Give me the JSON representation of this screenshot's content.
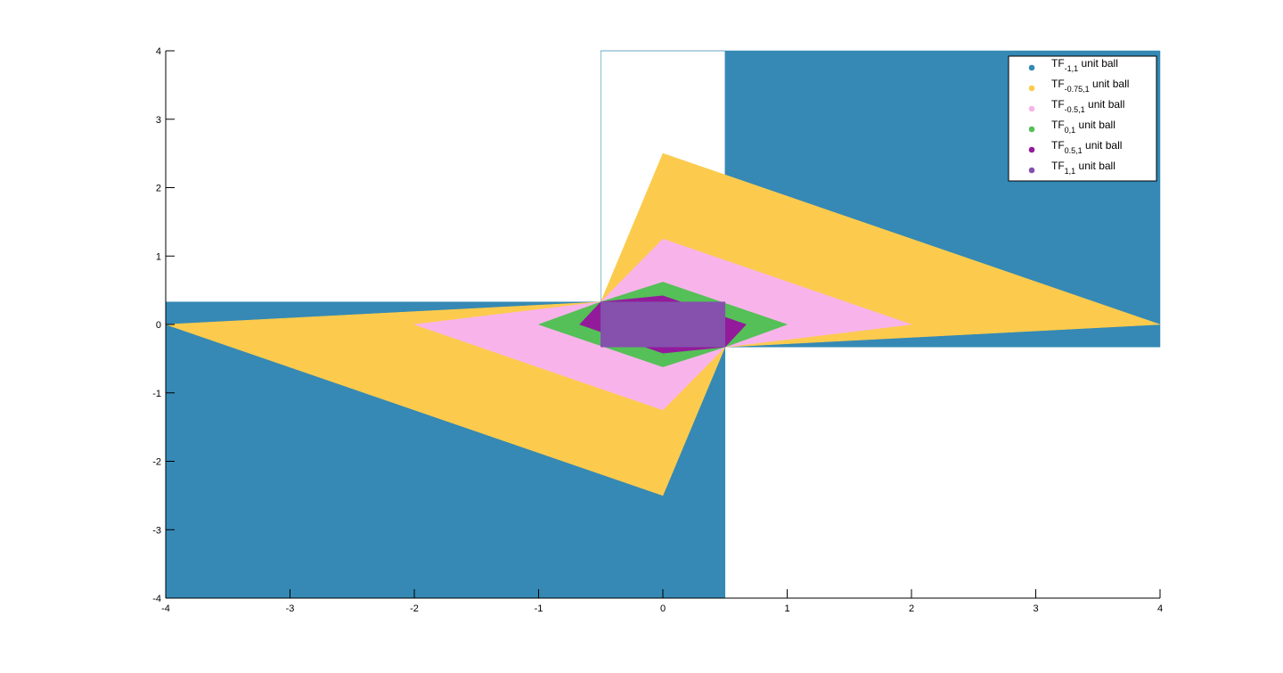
{
  "chart_data": {
    "type": "area",
    "title": "",
    "xlabel": "",
    "ylabel": "",
    "xlim": [
      -4,
      4
    ],
    "ylim": [
      -4,
      4
    ],
    "xticks": [
      -4,
      -3,
      -2,
      -1,
      0,
      1,
      2,
      3,
      4
    ],
    "yticks": [
      -4,
      -3,
      -2,
      -1,
      0,
      1,
      2,
      3,
      4
    ],
    "grid": false,
    "legend_position": "top-right",
    "series": [
      {
        "name_main": "TF",
        "name_sub": "-1,1",
        "name_suffix": " unit ball",
        "color": "#3589b4",
        "polygon": [
          [
            0.5,
            -0.33
          ],
          [
            0.5,
            4
          ],
          [
            -0.5,
            4
          ],
          [
            -0.5,
            0.33
          ],
          [
            -0.5,
            4
          ],
          [
            4,
            4
          ],
          [
            4,
            -0.33
          ],
          [
            0.5,
            -0.33
          ],
          [
            0.5,
            -4
          ],
          [
            -4,
            -4
          ],
          [
            -4,
            0.33
          ],
          [
            -0.5,
            0.33
          ]
        ]
      },
      {
        "name_main": "TF",
        "name_sub": "-0.75,1",
        "name_suffix": " unit ball",
        "color": "#fccb4e",
        "polygon": [
          [
            4,
            0
          ],
          [
            0,
            2.5
          ],
          [
            -0.5,
            0.33
          ],
          [
            -4,
            0
          ],
          [
            0,
            -2.5
          ],
          [
            0.5,
            -0.33
          ]
        ]
      },
      {
        "name_main": "TF",
        "name_sub": "-0.5,1",
        "name_suffix": " unit ball",
        "color": "#f8b4ea",
        "polygon": [
          [
            2,
            0
          ],
          [
            0,
            1.25
          ],
          [
            -0.5,
            0.33
          ],
          [
            -2,
            0
          ],
          [
            0,
            -1.25
          ],
          [
            0.5,
            -0.33
          ]
        ]
      },
      {
        "name_main": "TF",
        "name_sub": "0,1",
        "name_suffix": " unit ball",
        "color": "#54c057",
        "polygon": [
          [
            1,
            0
          ],
          [
            0,
            0.62
          ],
          [
            -0.5,
            0.33
          ],
          [
            -1,
            0
          ],
          [
            0,
            -0.62
          ],
          [
            0.5,
            -0.33
          ]
        ]
      },
      {
        "name_main": "TF",
        "name_sub": "0.5,1",
        "name_suffix": " unit ball",
        "color": "#931b9b",
        "polygon": [
          [
            0.67,
            0
          ],
          [
            0,
            0.42
          ],
          [
            -0.5,
            0.33
          ],
          [
            -0.67,
            0
          ],
          [
            0,
            -0.42
          ],
          [
            0.5,
            -0.33
          ]
        ]
      },
      {
        "name_main": "TF",
        "name_sub": "1,1",
        "name_suffix": " unit ball",
        "color": "#8551ad",
        "polygon": [
          [
            0.5,
            0
          ],
          [
            0.5,
            0.33
          ],
          [
            -0.5,
            0.33
          ],
          [
            -0.5,
            0
          ],
          [
            -0.5,
            -0.33
          ],
          [
            0.5,
            -0.33
          ]
        ]
      }
    ]
  }
}
